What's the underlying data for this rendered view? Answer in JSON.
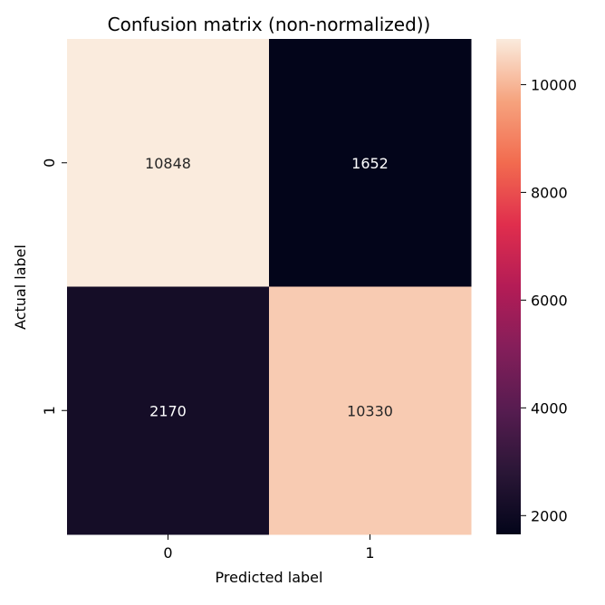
{
  "chart_data": {
    "type": "heatmap",
    "title": "Confusion matrix (non-normalized))",
    "xlabel": "Predicted label",
    "ylabel": "Actual label",
    "x_categories": [
      "0",
      "1"
    ],
    "y_categories": [
      "0",
      "1"
    ],
    "values": [
      [
        10848,
        1652
      ],
      [
        2170,
        10330
      ]
    ],
    "cell_labels": [
      [
        "10848",
        "1652"
      ],
      [
        "2170",
        "10330"
      ]
    ],
    "colormap": "rocket",
    "colorbar": {
      "min": 1652,
      "max": 10848,
      "ticks": [
        2000,
        4000,
        6000,
        8000,
        10000
      ],
      "tick_labels": [
        "2000",
        "4000",
        "6000",
        "8000",
        "10000"
      ]
    },
    "grid": false
  }
}
